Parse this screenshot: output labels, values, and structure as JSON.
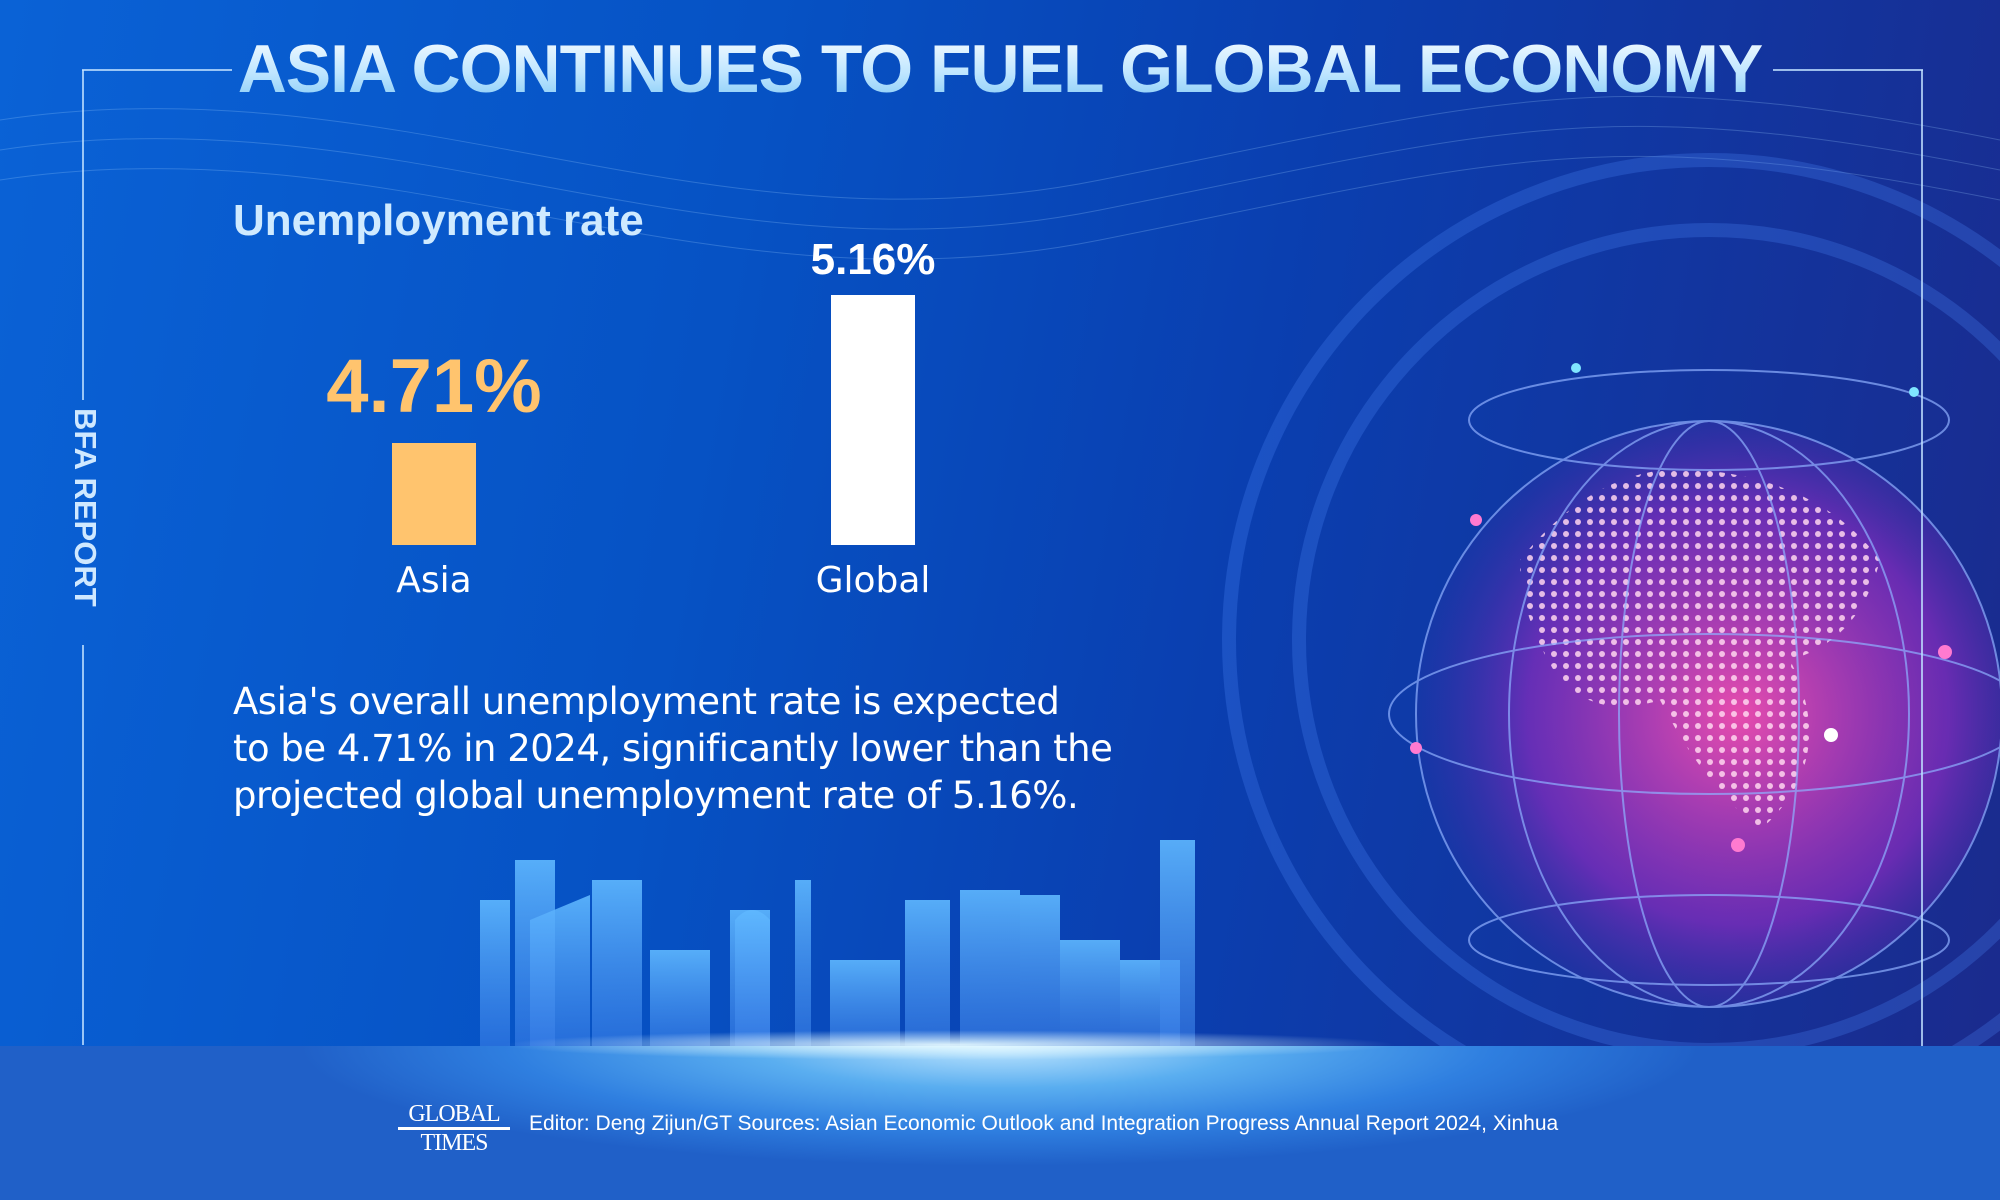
{
  "title": "ASIA CONTINUES TO FUEL GLOBAL ECONOMY",
  "side_label": "BFA REPORT",
  "chart_data": {
    "type": "bar",
    "title": "Unemployment rate",
    "categories": [
      "Asia",
      "Global"
    ],
    "values": [
      4.71,
      5.16
    ],
    "value_labels": [
      "4.71%",
      "5.16%"
    ],
    "colors": [
      "#FFC46E",
      "#FFFFFF"
    ],
    "ylim": [
      4.4,
      5.2
    ],
    "grid": false
  },
  "description": [
    "Asia's overall unemployment rate is expected",
    "to be 4.71% in 2024, significantly lower than the",
    "projected global unemployment rate of 5.16%."
  ],
  "footer": {
    "logo": "GLOBAL TIMES",
    "credits": "Editor: Deng Zijun/GT  Sources: Asian Economic Outlook and Integration Progress Annual Report 2024, Xinhua"
  },
  "colors": {
    "background": "#0652C4",
    "accent": "#FFC46E",
    "globe": "#E0409A"
  }
}
